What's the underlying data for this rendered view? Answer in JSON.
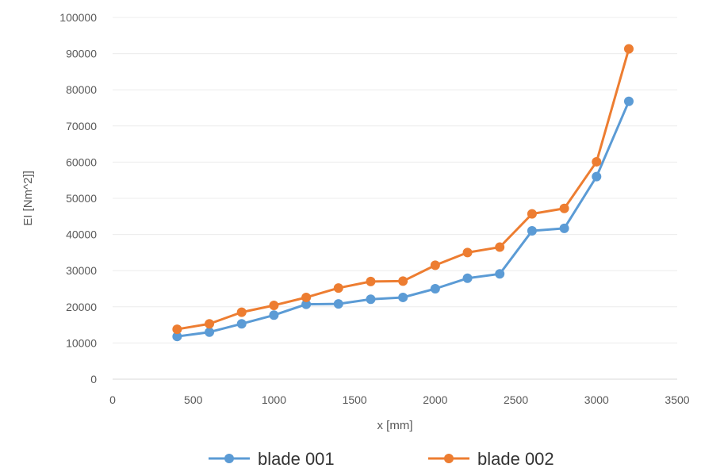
{
  "chart_data": {
    "type": "line",
    "title": "",
    "xlabel": "x [mm]",
    "ylabel": "EI [Nm^2]]",
    "xlim": [
      0,
      3500
    ],
    "ylim": [
      0,
      100000
    ],
    "xticks": [
      0,
      500,
      1000,
      1500,
      2000,
      2500,
      3000,
      3500
    ],
    "yticks": [
      0,
      10000,
      20000,
      30000,
      40000,
      50000,
      60000,
      70000,
      80000,
      90000,
      100000
    ],
    "grid": "horizontal",
    "legend": "bottom",
    "x": [
      400,
      600,
      800,
      1000,
      1200,
      1400,
      1600,
      1800,
      2000,
      2200,
      2400,
      2600,
      2800,
      3000,
      3200
    ],
    "series": [
      {
        "name": "blade 001",
        "color": "#5b9bd5",
        "values": [
          11800,
          13000,
          15300,
          17700,
          20700,
          20800,
          22100,
          22600,
          25000,
          27900,
          29100,
          41000,
          41700,
          56000,
          76800
        ]
      },
      {
        "name": "blade 002",
        "color": "#ed7d31",
        "values": [
          13800,
          15300,
          18500,
          20400,
          22600,
          25200,
          27000,
          27100,
          31500,
          35000,
          36500,
          45700,
          47200,
          60100,
          91300
        ]
      }
    ]
  }
}
